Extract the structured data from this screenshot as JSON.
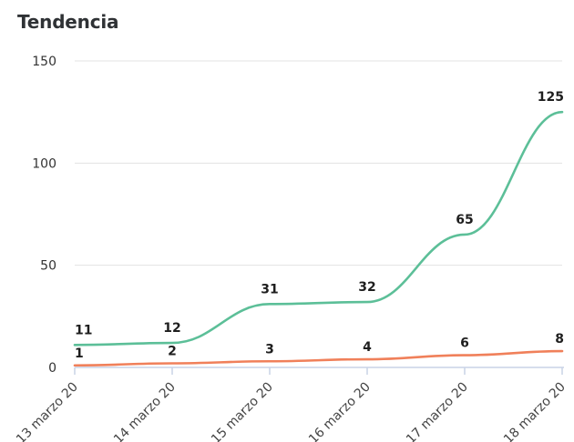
{
  "chart_data": {
    "type": "line",
    "title": "Tendencia",
    "categories": [
      "13 marzo 20",
      "14 marzo 20",
      "15 marzo 20",
      "16 marzo 20",
      "17 marzo 20",
      "18 marzo 20"
    ],
    "series": [
      {
        "values": [
          11,
          12,
          31,
          32,
          65,
          125
        ],
        "color": "#5cbf98"
      },
      {
        "values": [
          1,
          2,
          3,
          4,
          6,
          8
        ],
        "color": "#f0805a"
      }
    ],
    "ylim": [
      0,
      150
    ],
    "yticks": [
      0,
      50,
      100,
      150
    ],
    "grid": true,
    "legend": "none"
  }
}
